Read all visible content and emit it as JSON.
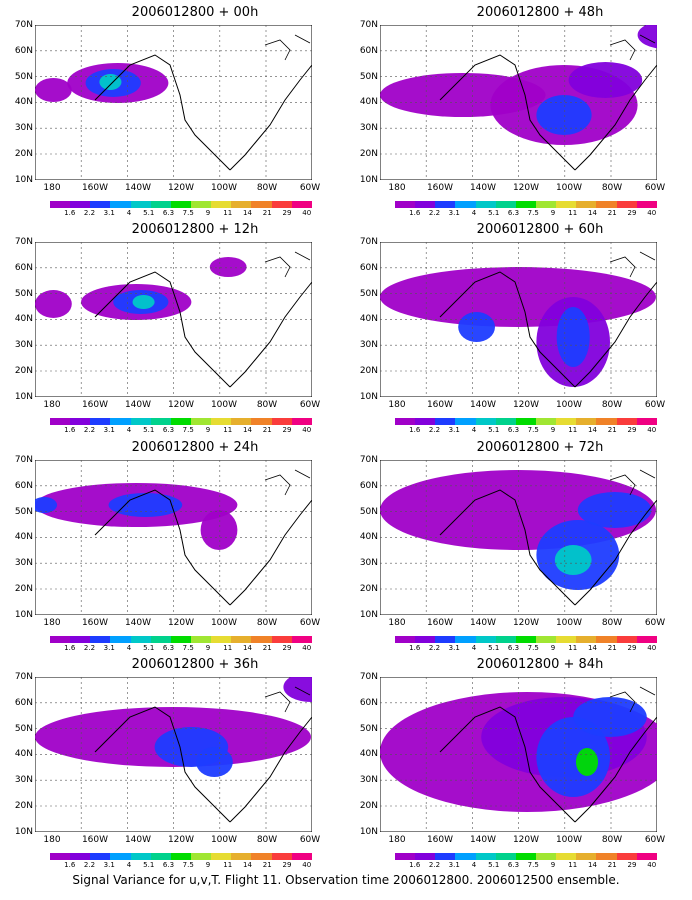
{
  "panels": [
    {
      "title": "2006012800 + 00h"
    },
    {
      "title": "2006012800 + 48h"
    },
    {
      "title": "2006012800 + 12h"
    },
    {
      "title": "2006012800 + 60h"
    },
    {
      "title": "2006012800 + 24h"
    },
    {
      "title": "2006012800 + 72h"
    },
    {
      "title": "2006012800 + 36h"
    },
    {
      "title": "2006012800 + 84h"
    }
  ],
  "axes": {
    "lat_labels": [
      "70N",
      "60N",
      "50N",
      "40N",
      "30N",
      "20N",
      "10N"
    ],
    "lon_labels": [
      "180",
      "160W",
      "140W",
      "120W",
      "100W",
      "80W",
      "60W"
    ]
  },
  "colorbar": {
    "labels": [
      "1.6",
      "2.2",
      "3.1",
      "4",
      "5.1",
      "6.3",
      "7.5",
      "9",
      "11",
      "14",
      "21",
      "29",
      "40"
    ],
    "colors": [
      "#a000c8",
      "#8200dc",
      "#1e3cff",
      "#00a0ff",
      "#00c8c8",
      "#00d28c",
      "#00dc00",
      "#a0e632",
      "#e6dc32",
      "#e6af2d",
      "#f08228",
      "#fa3c3c",
      "#f00082"
    ]
  },
  "footer": "Signal Variance for u,v,T. Flight 11. Observation time 2006012800. 2006012500 ensemble."
}
